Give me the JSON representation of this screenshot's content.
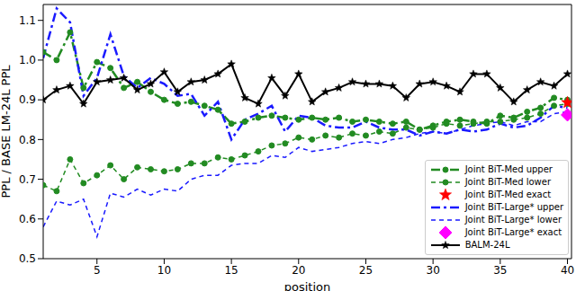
{
  "chart_data": {
    "type": "line",
    "x_label": "position",
    "y_label": "PPL / BASE LM-24L PPL",
    "x": [
      1,
      2,
      3,
      4,
      5,
      6,
      7,
      8,
      9,
      10,
      11,
      12,
      13,
      14,
      15,
      16,
      17,
      18,
      19,
      20,
      21,
      22,
      23,
      24,
      25,
      26,
      27,
      28,
      29,
      30,
      31,
      32,
      33,
      34,
      35,
      36,
      37,
      38,
      39,
      40
    ],
    "xlim": [
      1,
      40.3
    ],
    "xticks": [
      5,
      10,
      15,
      20,
      25,
      30,
      35,
      40
    ],
    "ylim": [
      0.5,
      1.14
    ],
    "yticks": [
      0.5,
      0.6,
      0.7,
      0.8,
      0.9,
      {
        "value": 1,
        "label": "1.0"
      },
      1.1
    ],
    "grid": false,
    "legend": "lower right",
    "series": [
      {
        "name": "Joint BiT-Med upper",
        "color": "#228b22",
        "line_style": "dashdot",
        "marker": "circle",
        "values": [
          1.02,
          1.0,
          1.07,
          0.93,
          0.995,
          0.98,
          0.93,
          0.945,
          0.92,
          0.9,
          0.89,
          0.895,
          0.885,
          0.875,
          0.84,
          0.845,
          0.855,
          0.86,
          0.855,
          0.85,
          0.855,
          0.85,
          0.855,
          0.845,
          0.85,
          0.845,
          0.84,
          0.845,
          0.825,
          0.835,
          0.845,
          0.85,
          0.845,
          0.84,
          0.86,
          0.855,
          0.87,
          0.88,
          0.905,
          0.9
        ]
      },
      {
        "name": "Joint BiT-Med lower",
        "color": "#228b22",
        "line_style": "dashed",
        "marker": "circle",
        "values": [
          0.685,
          0.67,
          0.75,
          0.69,
          0.71,
          0.735,
          0.7,
          0.73,
          0.725,
          0.72,
          0.725,
          0.74,
          0.74,
          0.755,
          0.75,
          0.76,
          0.77,
          0.785,
          0.79,
          0.805,
          0.8,
          0.81,
          0.805,
          0.815,
          0.81,
          0.82,
          0.815,
          0.83,
          0.825,
          0.83,
          0.84,
          0.835,
          0.84,
          0.845,
          0.845,
          0.85,
          0.855,
          0.865,
          0.885,
          0.89
        ]
      },
      {
        "name": "Joint BiT-Med exact",
        "color": "#ff0000",
        "line_style": "none",
        "marker": "star",
        "values": [
          null,
          null,
          null,
          null,
          null,
          null,
          null,
          null,
          null,
          null,
          null,
          null,
          null,
          null,
          null,
          null,
          null,
          null,
          null,
          null,
          null,
          null,
          null,
          null,
          null,
          null,
          null,
          null,
          null,
          null,
          null,
          null,
          null,
          null,
          null,
          null,
          null,
          null,
          null,
          0.893
        ]
      },
      {
        "name": "Joint BiT-Large* upper",
        "color": "#1a1aff",
        "line_style": "dashdot",
        "marker": "none",
        "values": [
          1.005,
          1.13,
          1.095,
          0.91,
          0.955,
          1.065,
          0.96,
          0.93,
          0.955,
          0.94,
          0.91,
          0.915,
          0.86,
          0.895,
          0.8,
          0.85,
          0.865,
          0.885,
          0.82,
          0.86,
          0.855,
          0.835,
          0.83,
          0.83,
          0.845,
          0.83,
          0.825,
          0.825,
          0.81,
          0.82,
          0.815,
          0.825,
          0.82,
          0.825,
          0.84,
          0.83,
          0.835,
          0.855,
          0.885,
          0.88
        ]
      },
      {
        "name": "Joint BiT-Large* lower",
        "color": "#1a1aff",
        "line_style": "dashed",
        "marker": "none",
        "values": [
          0.58,
          0.645,
          0.635,
          0.65,
          0.555,
          0.665,
          0.655,
          0.675,
          0.66,
          0.675,
          0.67,
          0.7,
          0.71,
          0.71,
          0.735,
          0.74,
          0.74,
          0.76,
          0.755,
          0.78,
          0.77,
          0.775,
          0.78,
          0.79,
          0.795,
          0.79,
          0.8,
          0.805,
          0.815,
          0.82,
          0.815,
          0.825,
          0.835,
          0.84,
          0.845,
          0.835,
          0.845,
          0.845,
          0.865,
          0.87
        ]
      },
      {
        "name": "Joint BiT-Large* exact",
        "color": "#ff00ff",
        "line_style": "none",
        "marker": "diamond",
        "values": [
          null,
          null,
          null,
          null,
          null,
          null,
          null,
          null,
          null,
          null,
          null,
          null,
          null,
          null,
          null,
          null,
          null,
          null,
          null,
          null,
          null,
          null,
          null,
          null,
          null,
          null,
          null,
          null,
          null,
          null,
          null,
          null,
          null,
          null,
          null,
          null,
          null,
          null,
          null,
          0.862
        ]
      },
      {
        "name": "BALM-24L",
        "color": "#000000",
        "line_style": "solid",
        "marker": "star",
        "values": [
          0.9,
          0.925,
          0.935,
          0.89,
          0.945,
          0.95,
          0.955,
          0.925,
          0.94,
          0.97,
          0.92,
          0.945,
          0.95,
          0.965,
          0.99,
          0.905,
          0.89,
          0.955,
          0.91,
          0.965,
          0.895,
          0.92,
          0.93,
          0.945,
          0.94,
          0.94,
          0.935,
          0.905,
          0.94,
          0.945,
          0.935,
          0.92,
          0.965,
          0.965,
          0.93,
          0.895,
          0.925,
          0.945,
          0.935,
          0.965
        ]
      }
    ]
  }
}
